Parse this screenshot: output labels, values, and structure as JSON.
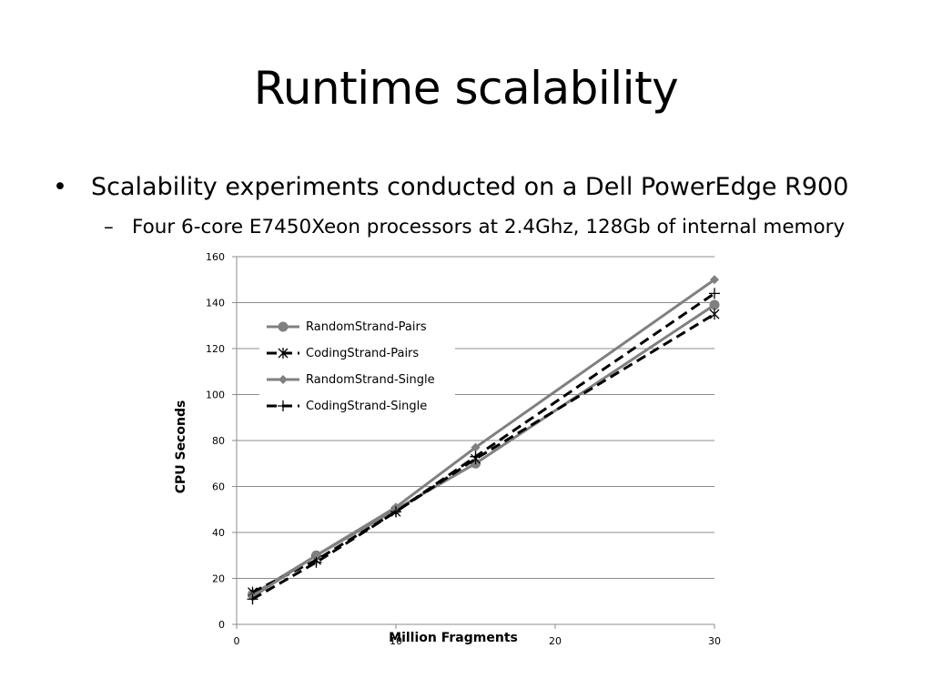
{
  "slide": {
    "title": "Runtime scalability",
    "bullets": [
      {
        "marker": "•",
        "text": "Scalability experiments conducted on a Dell PowerEdge R900",
        "sub": [
          {
            "marker": "–",
            "text": "Four 6-core E7450Xeon processors at 2.4Ghz, 128Gb of internal memory"
          }
        ]
      }
    ]
  },
  "chart_data": {
    "type": "line",
    "title": "",
    "xlabel": "Million Fragments",
    "ylabel": "CPU Seconds",
    "xlim": [
      0,
      30
    ],
    "ylim": [
      0,
      160
    ],
    "x_ticks": [
      0,
      10,
      20,
      30
    ],
    "y_ticks": [
      0,
      20,
      40,
      60,
      80,
      100,
      120,
      140,
      160
    ],
    "grid": "horizontal",
    "legend_position": "top-left",
    "series": [
      {
        "name": "RandomStrand-Pairs",
        "color": "#808080",
        "dash": "solid",
        "marker": "circle",
        "points": [
          [
            1,
            13
          ],
          [
            5,
            30
          ],
          [
            10,
            50
          ],
          [
            15,
            70
          ],
          [
            30,
            139
          ]
        ]
      },
      {
        "name": "CodingStrand-Pairs",
        "color": "#000000",
        "dash": "dashed",
        "marker": "asterisk",
        "points": [
          [
            1,
            14
          ],
          [
            5,
            28
          ],
          [
            10,
            49
          ],
          [
            15,
            72
          ],
          [
            30,
            135
          ]
        ]
      },
      {
        "name": "RandomStrand-Single",
        "color": "#808080",
        "dash": "solid",
        "marker": "diamond",
        "points": [
          [
            1,
            12
          ],
          [
            5,
            30
          ],
          [
            10,
            51
          ],
          [
            15,
            77
          ],
          [
            30,
            150
          ]
        ]
      },
      {
        "name": "CodingStrand-Single",
        "color": "#000000",
        "dash": "dashed",
        "marker": "plus",
        "points": [
          [
            1,
            11
          ],
          [
            5,
            27
          ],
          [
            10,
            49
          ],
          [
            15,
            73
          ],
          [
            30,
            144
          ]
        ]
      }
    ]
  }
}
